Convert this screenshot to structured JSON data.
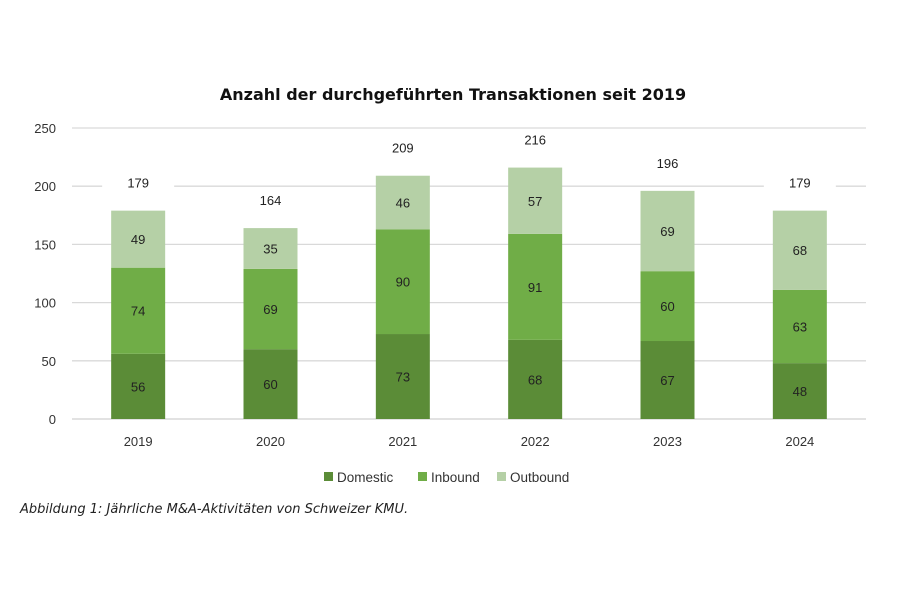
{
  "chart_data": {
    "type": "bar",
    "stacked": true,
    "title": "Anzahl der durchgeführten Transaktionen seit 2019",
    "xlabel": "",
    "ylabel": "",
    "categories": [
      "2019",
      "2020",
      "2021",
      "2022",
      "2023",
      "2024"
    ],
    "series": [
      {
        "name": "Domestic",
        "color": "#5b8c37",
        "values": [
          56,
          60,
          73,
          68,
          67,
          48
        ]
      },
      {
        "name": "Inbound",
        "color": "#70ad47",
        "values": [
          74,
          69,
          90,
          91,
          60,
          63
        ]
      },
      {
        "name": "Outbound",
        "color": "#b5d0a6",
        "values": [
          49,
          35,
          46,
          57,
          69,
          68
        ]
      }
    ],
    "totals": [
      179,
      164,
      209,
      216,
      196,
      179
    ],
    "ylim": [
      0,
      250
    ],
    "yticks": [
      0,
      50,
      100,
      150,
      200,
      250
    ],
    "grid": true,
    "legend": "bottom"
  },
  "caption": "Abbildung 1: Jährliche M&A-Aktivitäten von Schweizer KMU."
}
